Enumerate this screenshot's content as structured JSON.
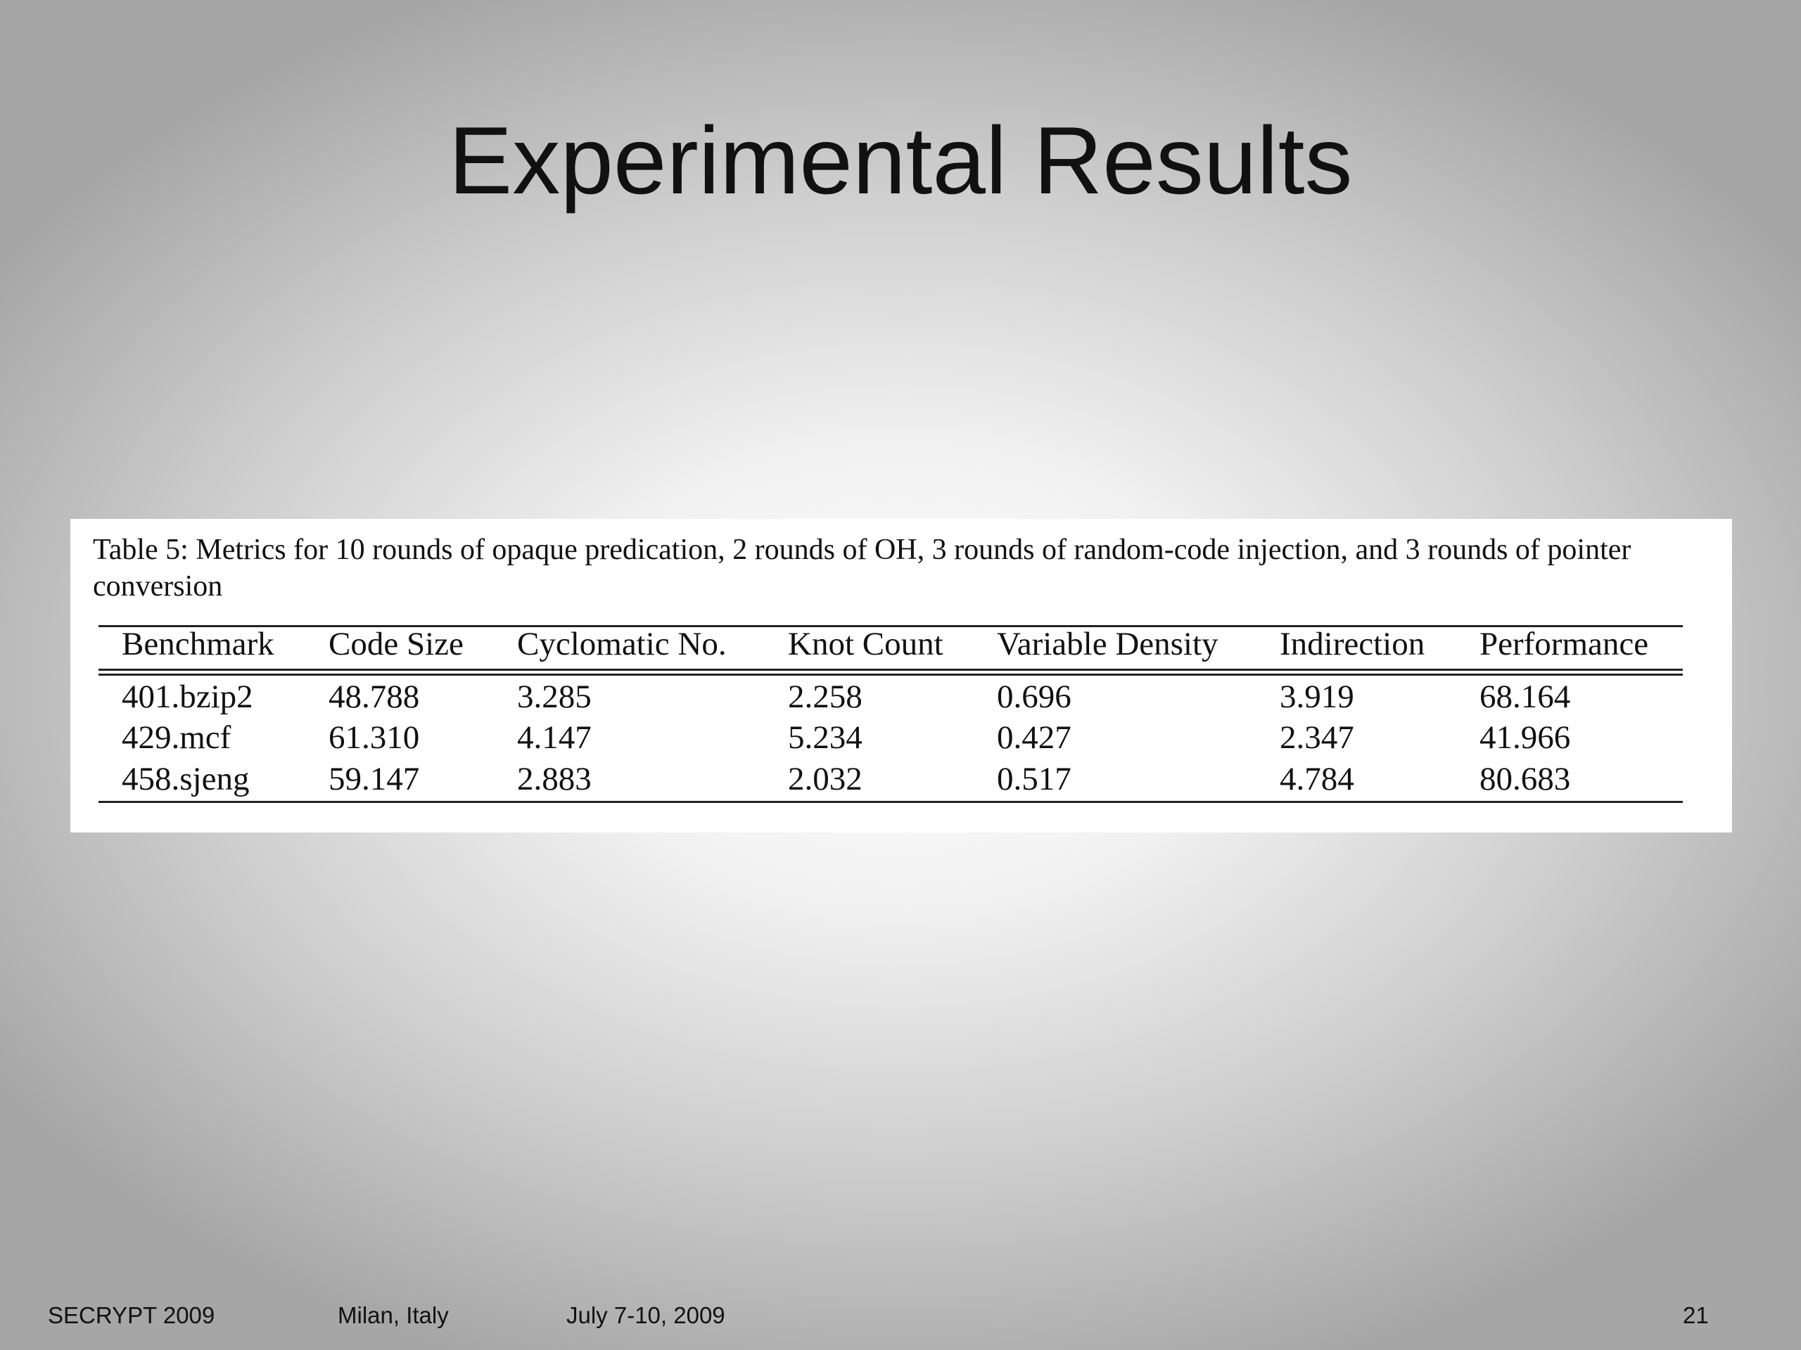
{
  "slide": {
    "title": "Experimental Results",
    "caption": "Table 5: Metrics for 10 rounds of opaque predication, 2 rounds of OH, 3 rounds of random-code injection, and 3 rounds of pointer conversion",
    "table": {
      "headers": [
        "Benchmark",
        "Code Size",
        "Cyclomatic No.",
        "Knot Count",
        "Variable Density",
        "Indirection",
        "Performance"
      ],
      "rows": [
        [
          "401.bzip2",
          "48.788",
          "3.285",
          "2.258",
          "0.696",
          "3.919",
          "68.164"
        ],
        [
          "429.mcf",
          "61.310",
          "4.147",
          "5.234",
          "0.427",
          "2.347",
          "41.966"
        ],
        [
          "458.sjeng",
          "59.147",
          "2.883",
          "2.032",
          "0.517",
          "4.784",
          "80.683"
        ]
      ]
    },
    "footer": {
      "conference": "SECRYPT 2009",
      "location": "Milan, Italy",
      "dates": "July 7-10, 2009",
      "page": "21"
    }
  }
}
